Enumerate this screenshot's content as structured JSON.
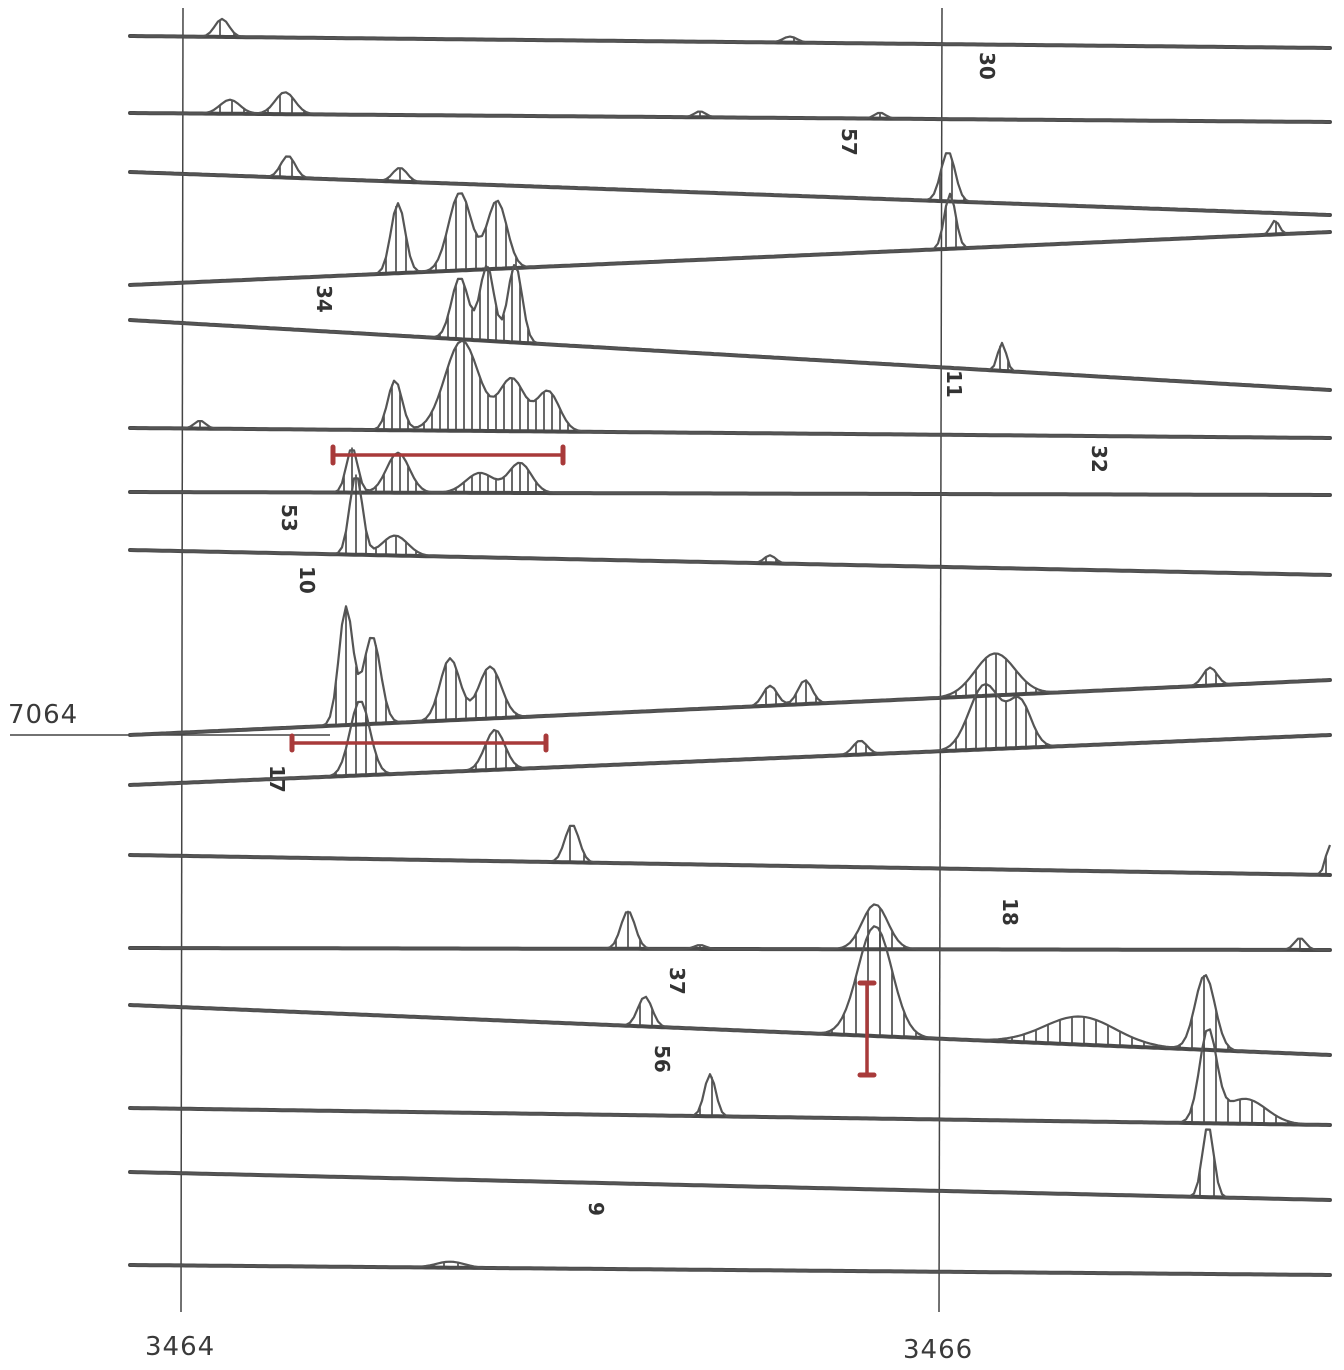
{
  "x_axis_labels": [
    "3464",
    "3466"
  ],
  "y_axis_labels": [
    "7064"
  ],
  "fiducial_labels": [
    "30",
    "57",
    "34",
    "11",
    "32",
    "53",
    "10",
    "17",
    "18",
    "37",
    "56",
    "9"
  ],
  "colors": {
    "trace": "#4a4a4a",
    "scale_bar": "#a83a3a",
    "background": "#ffffff"
  }
}
